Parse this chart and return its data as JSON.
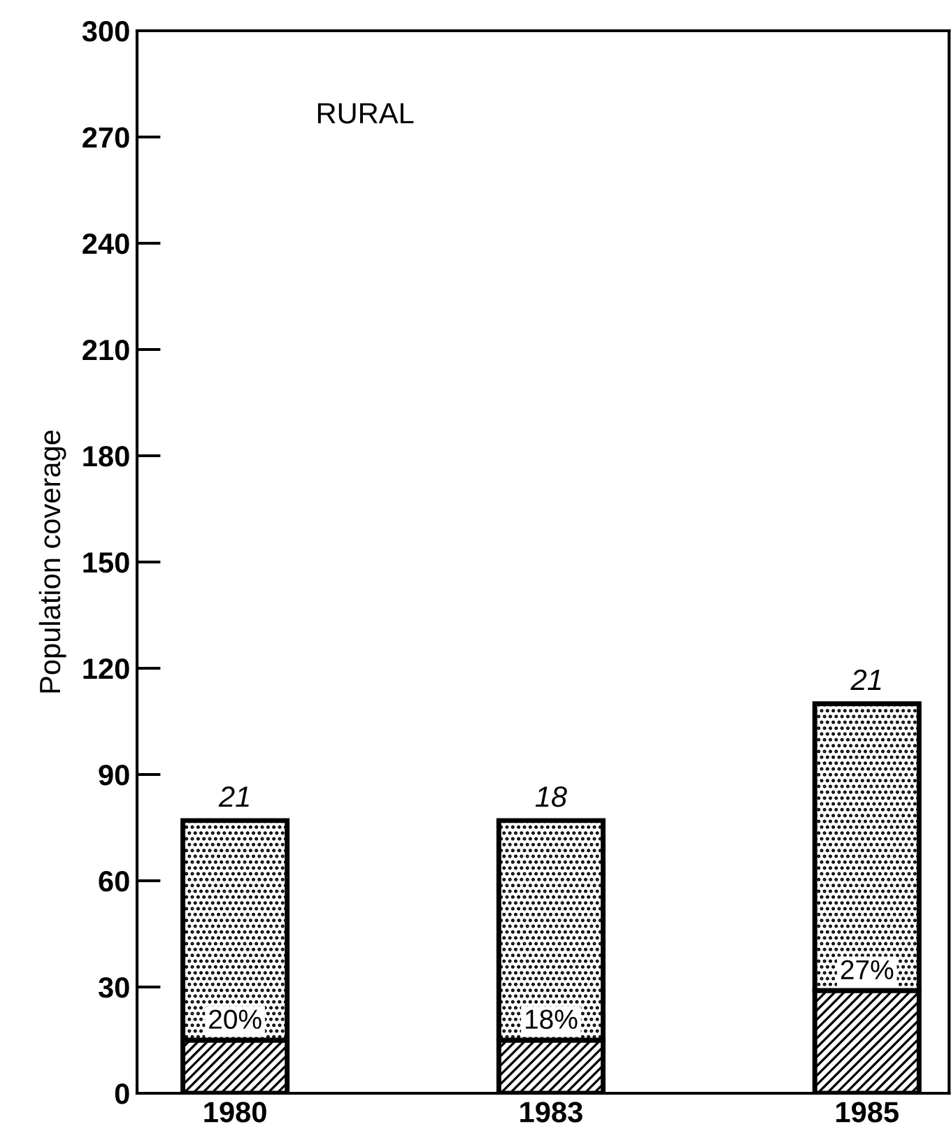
{
  "chart_data": {
    "type": "bar",
    "title": "RURAL",
    "ylabel": "Population coverage",
    "categories": [
      "1980",
      "1983",
      "1985"
    ],
    "stacked": true,
    "series": [
      {
        "color": "#000000",
        "values": [
          15,
          15,
          29
        ]
      },
      {
        "color": "#000000",
        "values": [
          62,
          62,
          81
        ]
      }
    ],
    "ylim": [
      0,
      300
    ],
    "yticks": [
      0,
      30,
      60,
      90,
      120,
      150,
      180,
      210,
      240,
      270,
      300
    ],
    "annotations": [
      {
        "text": "21",
        "x": "1980",
        "y": 77
      },
      {
        "text": "18",
        "x": "1983",
        "y": 77
      },
      {
        "text": "21",
        "x": "1985",
        "y": 110
      },
      {
        "text": "20%",
        "x": "1980",
        "y": 15
      },
      {
        "text": "18%",
        "x": "1983",
        "y": 15
      },
      {
        "text": "27%",
        "x": "1985",
        "y": 29
      }
    ],
    "grid": false,
    "legend": false
  }
}
